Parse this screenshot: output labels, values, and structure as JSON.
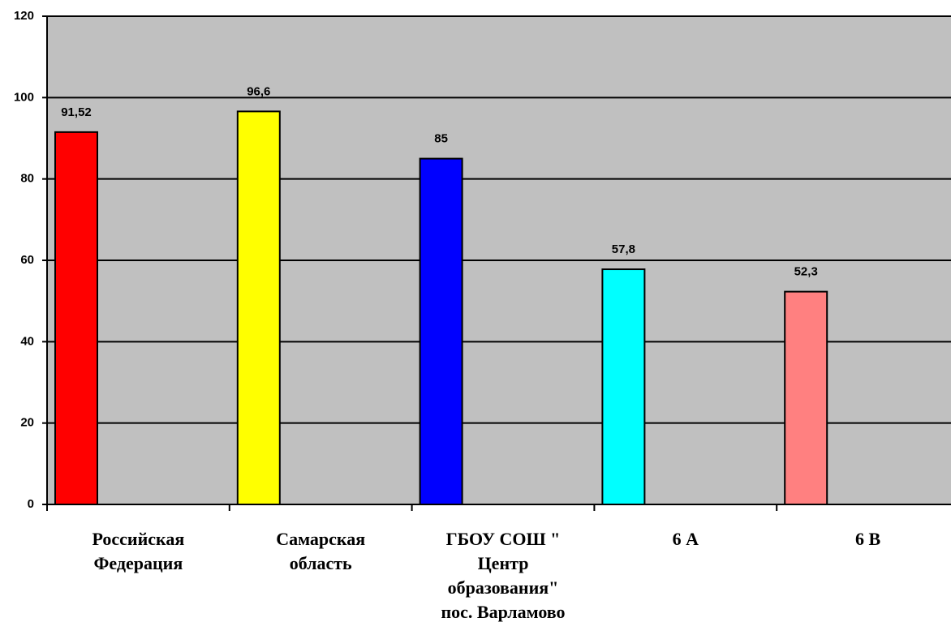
{
  "chart_data": {
    "type": "bar",
    "categories": [
      "Российская\nФедерация",
      "Самарская\nобласть",
      "ГБОУ  СОШ \"\nЦентр\nобразования\"\nпос. Варламово",
      "6 А",
      "6 В"
    ],
    "values": [
      91.52,
      96.6,
      85,
      57.8,
      52.3
    ],
    "value_labels": [
      "91,52",
      "96,6",
      "85",
      "57,8",
      "52,3"
    ],
    "colors": [
      "#ff0000",
      "#ffff00",
      "#0000ff",
      "#00ffff",
      "#ff8080"
    ],
    "ylim": [
      0,
      120
    ],
    "yticks": [
      0,
      20,
      40,
      60,
      80,
      100,
      120
    ],
    "grid": true
  }
}
